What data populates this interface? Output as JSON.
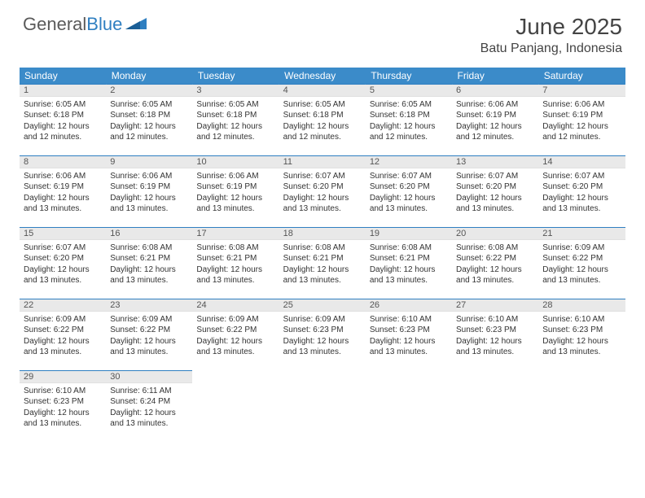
{
  "logo": {
    "word1": "General",
    "word2": "Blue"
  },
  "title": "June 2025",
  "location": "Batu Panjang, Indonesia",
  "colors": {
    "header_bg": "#3b8bc9",
    "border": "#2f7fc1",
    "daynum_bg": "#e9e9e9",
    "text": "#333333",
    "logo_gray": "#5a5a5a",
    "logo_blue": "#2f7fc1"
  },
  "weekdays": [
    "Sunday",
    "Monday",
    "Tuesday",
    "Wednesday",
    "Thursday",
    "Friday",
    "Saturday"
  ],
  "days": [
    {
      "n": 1,
      "sunrise": "6:05 AM",
      "sunset": "6:18 PM",
      "daylight": "12 hours and 12 minutes."
    },
    {
      "n": 2,
      "sunrise": "6:05 AM",
      "sunset": "6:18 PM",
      "daylight": "12 hours and 12 minutes."
    },
    {
      "n": 3,
      "sunrise": "6:05 AM",
      "sunset": "6:18 PM",
      "daylight": "12 hours and 12 minutes."
    },
    {
      "n": 4,
      "sunrise": "6:05 AM",
      "sunset": "6:18 PM",
      "daylight": "12 hours and 12 minutes."
    },
    {
      "n": 5,
      "sunrise": "6:05 AM",
      "sunset": "6:18 PM",
      "daylight": "12 hours and 12 minutes."
    },
    {
      "n": 6,
      "sunrise": "6:06 AM",
      "sunset": "6:19 PM",
      "daylight": "12 hours and 12 minutes."
    },
    {
      "n": 7,
      "sunrise": "6:06 AM",
      "sunset": "6:19 PM",
      "daylight": "12 hours and 12 minutes."
    },
    {
      "n": 8,
      "sunrise": "6:06 AM",
      "sunset": "6:19 PM",
      "daylight": "12 hours and 13 minutes."
    },
    {
      "n": 9,
      "sunrise": "6:06 AM",
      "sunset": "6:19 PM",
      "daylight": "12 hours and 13 minutes."
    },
    {
      "n": 10,
      "sunrise": "6:06 AM",
      "sunset": "6:19 PM",
      "daylight": "12 hours and 13 minutes."
    },
    {
      "n": 11,
      "sunrise": "6:07 AM",
      "sunset": "6:20 PM",
      "daylight": "12 hours and 13 minutes."
    },
    {
      "n": 12,
      "sunrise": "6:07 AM",
      "sunset": "6:20 PM",
      "daylight": "12 hours and 13 minutes."
    },
    {
      "n": 13,
      "sunrise": "6:07 AM",
      "sunset": "6:20 PM",
      "daylight": "12 hours and 13 minutes."
    },
    {
      "n": 14,
      "sunrise": "6:07 AM",
      "sunset": "6:20 PM",
      "daylight": "12 hours and 13 minutes."
    },
    {
      "n": 15,
      "sunrise": "6:07 AM",
      "sunset": "6:20 PM",
      "daylight": "12 hours and 13 minutes."
    },
    {
      "n": 16,
      "sunrise": "6:08 AM",
      "sunset": "6:21 PM",
      "daylight": "12 hours and 13 minutes."
    },
    {
      "n": 17,
      "sunrise": "6:08 AM",
      "sunset": "6:21 PM",
      "daylight": "12 hours and 13 minutes."
    },
    {
      "n": 18,
      "sunrise": "6:08 AM",
      "sunset": "6:21 PM",
      "daylight": "12 hours and 13 minutes."
    },
    {
      "n": 19,
      "sunrise": "6:08 AM",
      "sunset": "6:21 PM",
      "daylight": "12 hours and 13 minutes."
    },
    {
      "n": 20,
      "sunrise": "6:08 AM",
      "sunset": "6:22 PM",
      "daylight": "12 hours and 13 minutes."
    },
    {
      "n": 21,
      "sunrise": "6:09 AM",
      "sunset": "6:22 PM",
      "daylight": "12 hours and 13 minutes."
    },
    {
      "n": 22,
      "sunrise": "6:09 AM",
      "sunset": "6:22 PM",
      "daylight": "12 hours and 13 minutes."
    },
    {
      "n": 23,
      "sunrise": "6:09 AM",
      "sunset": "6:22 PM",
      "daylight": "12 hours and 13 minutes."
    },
    {
      "n": 24,
      "sunrise": "6:09 AM",
      "sunset": "6:22 PM",
      "daylight": "12 hours and 13 minutes."
    },
    {
      "n": 25,
      "sunrise": "6:09 AM",
      "sunset": "6:23 PM",
      "daylight": "12 hours and 13 minutes."
    },
    {
      "n": 26,
      "sunrise": "6:10 AM",
      "sunset": "6:23 PM",
      "daylight": "12 hours and 13 minutes."
    },
    {
      "n": 27,
      "sunrise": "6:10 AM",
      "sunset": "6:23 PM",
      "daylight": "12 hours and 13 minutes."
    },
    {
      "n": 28,
      "sunrise": "6:10 AM",
      "sunset": "6:23 PM",
      "daylight": "12 hours and 13 minutes."
    },
    {
      "n": 29,
      "sunrise": "6:10 AM",
      "sunset": "6:23 PM",
      "daylight": "12 hours and 13 minutes."
    },
    {
      "n": 30,
      "sunrise": "6:11 AM",
      "sunset": "6:24 PM",
      "daylight": "12 hours and 13 minutes."
    }
  ],
  "labels": {
    "sunrise": "Sunrise:",
    "sunset": "Sunset:",
    "daylight": "Daylight:"
  }
}
